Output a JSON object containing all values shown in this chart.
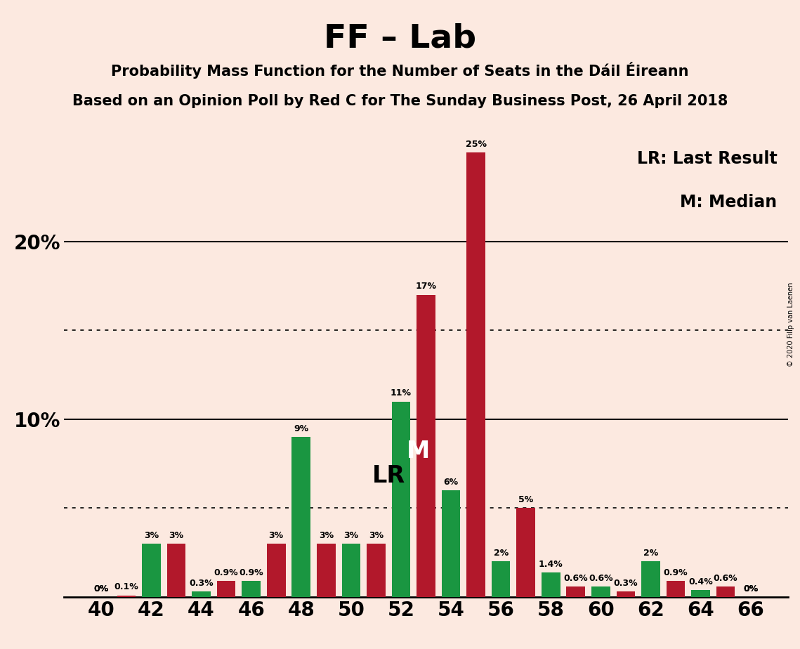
{
  "title": "FF – Lab",
  "subtitle1": "Probability Mass Function for the Number of Seats in the Dáil Éireann",
  "subtitle2": "Based on an Opinion Poll by Red C for The Sunday Business Post, 26 April 2018",
  "copyright": "© 2020 Filip van Laenen",
  "legend_lr": "LR: Last Result",
  "legend_m": "M: Median",
  "background_color": "#fce9e0",
  "bar_color_green": "#1a9641",
  "bar_color_red": "#b2182b",
  "seats": [
    40,
    41,
    42,
    43,
    44,
    45,
    46,
    47,
    48,
    49,
    50,
    51,
    52,
    53,
    54,
    55,
    56,
    57,
    58,
    59,
    60,
    61,
    62,
    63,
    64,
    65,
    66
  ],
  "green_values": [
    0.0,
    0.0,
    3.0,
    0.0,
    0.3,
    0.0,
    0.9,
    0.0,
    9.0,
    0.0,
    3.0,
    0.0,
    11.0,
    0.0,
    6.0,
    0.0,
    2.0,
    0.0,
    1.4,
    0.0,
    0.6,
    0.0,
    2.0,
    0.0,
    0.4,
    0.0,
    0.0
  ],
  "red_values": [
    0.0,
    0.1,
    0.0,
    3.0,
    0.0,
    0.9,
    0.0,
    3.0,
    0.0,
    3.0,
    0.0,
    3.0,
    0.0,
    17.0,
    0.0,
    25.0,
    0.0,
    5.0,
    0.0,
    0.6,
    0.0,
    0.3,
    0.0,
    0.9,
    0.0,
    0.6,
    0.0
  ],
  "green_labels": [
    "0%",
    "",
    "3%",
    "",
    "0.3%",
    "",
    "0.9%",
    "",
    "9%",
    "",
    "3%",
    "",
    "11%",
    "",
    "6%",
    "",
    "2%",
    "",
    "1.4%",
    "",
    "0.6%",
    "",
    "2%",
    "",
    "0.4%",
    "",
    "0%"
  ],
  "red_labels": [
    "0%",
    "0.1%",
    "",
    "3%",
    "",
    "0.9%",
    "",
    "3%",
    "",
    "3%",
    "",
    "3%",
    "",
    "17%",
    "",
    "25%",
    "",
    "5%",
    "",
    "0.6%",
    "",
    "0.3%",
    "",
    "0.9%",
    "",
    "0.6%",
    "0%"
  ],
  "lr_x": 51.5,
  "lr_y": 6.8,
  "m_x": 52.7,
  "m_y": 8.2,
  "ylim": [
    0,
    27
  ],
  "dotted_lines": [
    5.0,
    15.0
  ],
  "solid_lines": [
    10.0,
    20.0
  ],
  "xtick_seats": [
    40,
    42,
    44,
    46,
    48,
    50,
    52,
    54,
    56,
    58,
    60,
    62,
    64,
    66
  ],
  "xlim": [
    38.5,
    67.5
  ]
}
